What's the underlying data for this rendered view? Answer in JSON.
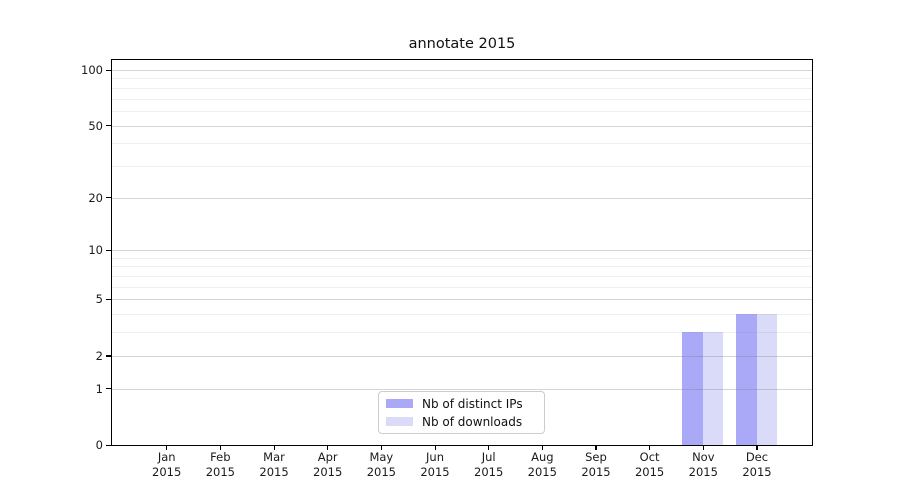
{
  "title": "annotate 2015",
  "chart_data": {
    "type": "bar",
    "title": "annotate 2015",
    "categories": [
      {
        "month": "Jan",
        "year": "2015"
      },
      {
        "month": "Feb",
        "year": "2015"
      },
      {
        "month": "Mar",
        "year": "2015"
      },
      {
        "month": "Apr",
        "year": "2015"
      },
      {
        "month": "May",
        "year": "2015"
      },
      {
        "month": "Jun",
        "year": "2015"
      },
      {
        "month": "Jul",
        "year": "2015"
      },
      {
        "month": "Aug",
        "year": "2015"
      },
      {
        "month": "Sep",
        "year": "2015"
      },
      {
        "month": "Oct",
        "year": "2015"
      },
      {
        "month": "Nov",
        "year": "2015"
      },
      {
        "month": "Dec",
        "year": "2015"
      }
    ],
    "series": [
      {
        "name": "Nb of distinct IPs",
        "color": "#a9a9f7",
        "values": [
          0,
          0,
          0,
          0,
          0,
          0,
          0,
          0,
          0,
          0,
          3,
          4
        ]
      },
      {
        "name": "Nb of downloads",
        "color": "#dadaf9",
        "values": [
          0,
          0,
          0,
          0,
          0,
          0,
          0,
          0,
          0,
          0,
          3,
          4
        ]
      }
    ],
    "yscale": "log1p",
    "ylim": [
      0,
      100
    ],
    "yticks_major": [
      0,
      1,
      2,
      5,
      10,
      20,
      50,
      100
    ],
    "yticks_minor": [
      3,
      4,
      6,
      7,
      8,
      9,
      30,
      40,
      60,
      70,
      80,
      90
    ],
    "grid": true,
    "legend_position": "lower center",
    "spine_color": "#000000",
    "major_grid_color": "#d9d9d9",
    "minor_grid_color": "#efefef"
  }
}
